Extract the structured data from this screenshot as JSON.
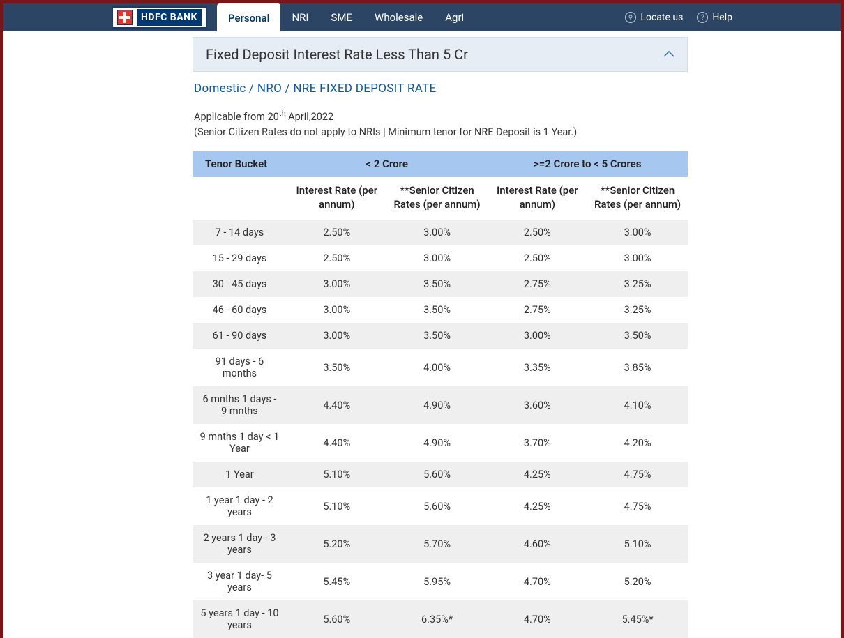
{
  "header": {
    "logo_text": "HDFC BANK",
    "nav": [
      "Personal",
      "NRI",
      "SME",
      "Wholesale",
      "Agri"
    ],
    "active_nav_index": 0,
    "locate_label": "Locate us",
    "help_label": "Help"
  },
  "panel": {
    "title": "Fixed Deposit Interest Rate Less Than 5 Cr"
  },
  "breadcrumb": "Domestic / NRO / NRE FIXED DEPOSIT RATE",
  "notes": {
    "applicable_prefix": "Applicable from 20",
    "applicable_sup": "th",
    "applicable_suffix": " April,2022",
    "sub_note": "(Senior Citizen Rates do not apply to NRIs | Minimum tenor for NRE Deposit is 1 Year.)"
  },
  "table": {
    "group_headers": [
      "Tenor Bucket",
      "< 2 Crore",
      ">=2 Crore to < 5 Crores"
    ],
    "sub_headers": [
      "Interest Rate (per annum)",
      "**Senior Citizen Rates (per annum)",
      "Interest Rate (per annum)",
      "**Senior Citizen Rates (per annum)"
    ],
    "rows": [
      {
        "tenor": "7 - 14 days",
        "c1": "2.50%",
        "c2": "3.00%",
        "c3": "2.50%",
        "c4": "3.00%"
      },
      {
        "tenor": "15 - 29 days",
        "c1": "2.50%",
        "c2": "3.00%",
        "c3": "2.50%",
        "c4": "3.00%"
      },
      {
        "tenor": "30 - 45 days",
        "c1": "3.00%",
        "c2": "3.50%",
        "c3": "2.75%",
        "c4": "3.25%"
      },
      {
        "tenor": "46 - 60 days",
        "c1": "3.00%",
        "c2": "3.50%",
        "c3": "2.75%",
        "c4": "3.25%"
      },
      {
        "tenor": "61 - 90 days",
        "c1": "3.00%",
        "c2": "3.50%",
        "c3": "3.00%",
        "c4": "3.50%"
      },
      {
        "tenor": "91 days - 6 months",
        "c1": "3.50%",
        "c2": "4.00%",
        "c3": "3.35%",
        "c4": "3.85%"
      },
      {
        "tenor": "6 mnths 1 days - 9 mnths",
        "c1": "4.40%",
        "c2": "4.90%",
        "c3": "3.60%",
        "c4": "4.10%"
      },
      {
        "tenor": "9 mnths 1 day < 1 Year",
        "c1": "4.40%",
        "c2": "4.90%",
        "c3": "3.70%",
        "c4": "4.20%"
      },
      {
        "tenor": "1 Year",
        "c1": "5.10%",
        "c2": "5.60%",
        "c3": "4.25%",
        "c4": "4.75%"
      },
      {
        "tenor": "1 year 1 day - 2 years",
        "c1": "5.10%",
        "c2": "5.60%",
        "c3": "4.25%",
        "c4": "4.75%"
      },
      {
        "tenor": "2 years 1 day - 3 years",
        "c1": "5.20%",
        "c2": "5.70%",
        "c3": "4.60%",
        "c4": "5.10%"
      },
      {
        "tenor": "3 year 1 day- 5 years",
        "c1": "5.45%",
        "c2": "5.95%",
        "c3": "4.70%",
        "c4": "5.20%"
      },
      {
        "tenor": "5 years 1 day - 10 years",
        "c1": "5.60%",
        "c2": "6.35%*",
        "c3": "4.70%",
        "c4": "5.45%*"
      }
    ]
  },
  "colors": {
    "topbar_bg": "#2c4565",
    "accent_red": "#7a1518",
    "link_blue": "#0f5aa8",
    "panel_header_bg": "#e6edf5",
    "table_head_bg": "#a6c7ef",
    "row_alt_bg": "#efefef"
  }
}
